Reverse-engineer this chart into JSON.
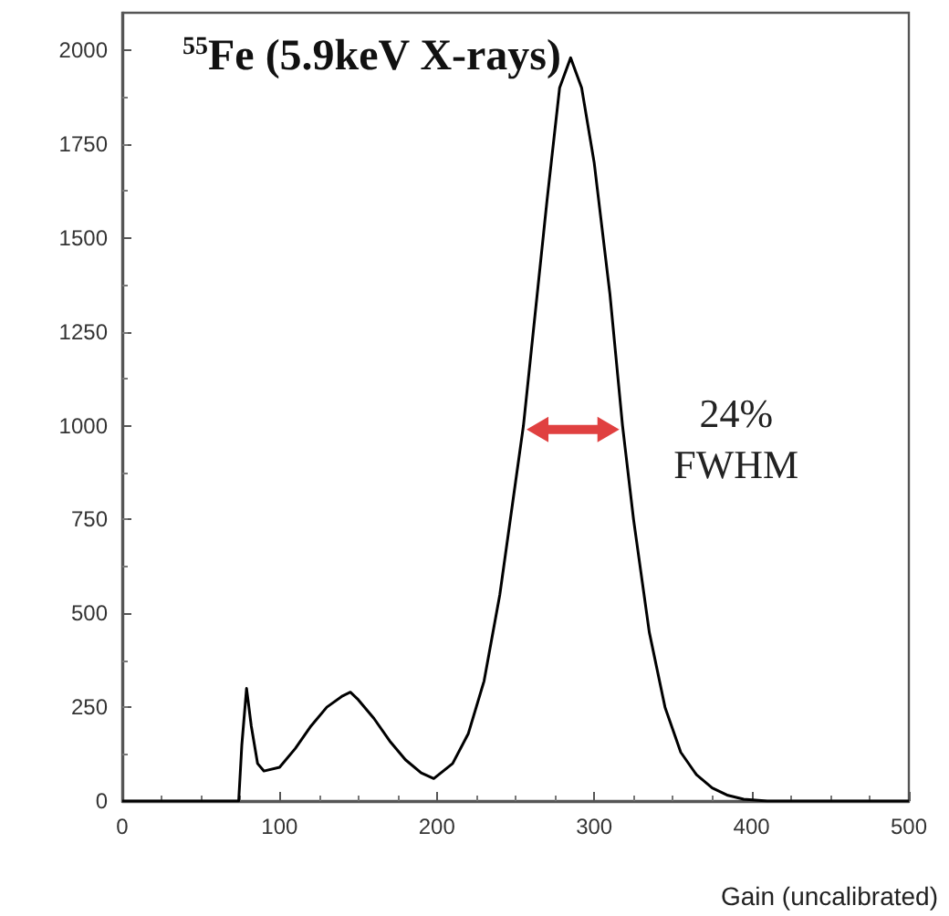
{
  "chart_data": {
    "type": "line",
    "title": "$^{55}$Fe (5.9keV X-rays)",
    "xlabel": "Gain (uncalibrated)",
    "x": [
      0,
      74,
      76,
      79,
      82,
      86,
      90,
      100,
      110,
      120,
      130,
      140,
      145,
      150,
      160,
      170,
      180,
      190,
      198,
      210,
      220,
      230,
      240,
      250,
      255,
      260,
      270,
      278,
      285,
      292,
      300,
      310,
      318,
      325,
      335,
      345,
      355,
      365,
      375,
      385,
      395,
      410,
      500
    ],
    "series": [
      {
        "color": "#000000",
        "values": [
          0,
          0,
          150,
          300,
          200,
          100,
          80,
          90,
          140,
          200,
          250,
          280,
          290,
          270,
          220,
          160,
          110,
          75,
          60,
          100,
          180,
          320,
          550,
          850,
          1000,
          1200,
          1600,
          1900,
          1980,
          1900,
          1700,
          1350,
          1000,
          750,
          450,
          250,
          130,
          70,
          35,
          15,
          5,
          0,
          0
        ]
      }
    ],
    "xlim": [
      0,
      500
    ],
    "xticks": [
      0,
      100,
      200,
      300,
      400,
      500
    ],
    "ylim": [
      0,
      2100
    ],
    "yticks": [
      0,
      250,
      500,
      750,
      1000,
      1250,
      1500,
      1750,
      2000
    ],
    "annotations": [
      "24%\nFWHM"
    ],
    "grid": false,
    "marker": "none",
    "line_style": "solid"
  }
}
